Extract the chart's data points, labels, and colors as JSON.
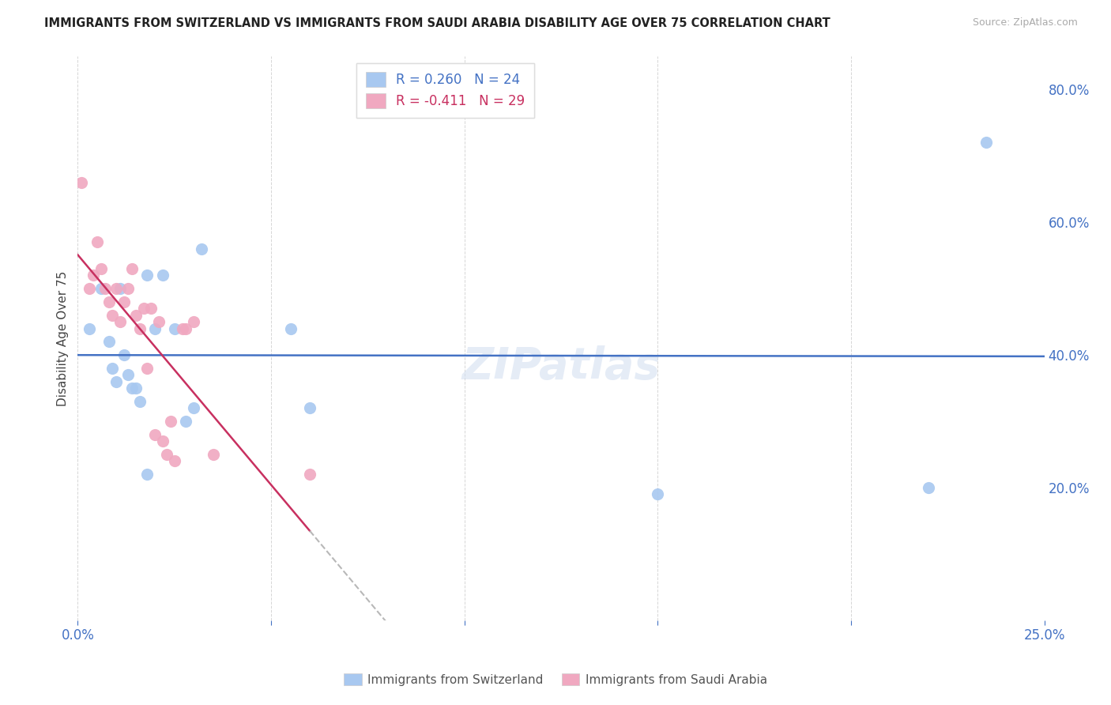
{
  "title": "IMMIGRANTS FROM SWITZERLAND VS IMMIGRANTS FROM SAUDI ARABIA DISABILITY AGE OVER 75 CORRELATION CHART",
  "source": "Source: ZipAtlas.com",
  "ylabel": "Disability Age Over 75",
  "xlim": [
    0.0,
    0.25
  ],
  "ylim": [
    0.0,
    0.85
  ],
  "xticks": [
    0.0,
    0.05,
    0.1,
    0.15,
    0.2,
    0.25
  ],
  "yticks_right": [
    0.2,
    0.4,
    0.6,
    0.8
  ],
  "ytick_right_labels": [
    "20.0%",
    "40.0%",
    "60.0%",
    "80.0%"
  ],
  "legend1_R": 0.26,
  "legend1_N": 24,
  "legend2_R": -0.411,
  "legend2_N": 29,
  "color_swiss": "#a8c8f0",
  "color_saudi": "#f0a8c0",
  "color_swiss_line": "#4472c4",
  "color_saudi_line": "#c83060",
  "color_saudi_dashed": "#b8b8b8",
  "legend_bottom_swiss": "Immigrants from Switzerland",
  "legend_bottom_saudi": "Immigrants from Saudi Arabia",
  "watermark": "ZIPatlas",
  "swiss_x": [
    0.003,
    0.006,
    0.008,
    0.009,
    0.01,
    0.011,
    0.012,
    0.013,
    0.014,
    0.015,
    0.016,
    0.018,
    0.018,
    0.02,
    0.022,
    0.025,
    0.028,
    0.03,
    0.032,
    0.055,
    0.06,
    0.15,
    0.22,
    0.235
  ],
  "swiss_y": [
    0.44,
    0.5,
    0.42,
    0.38,
    0.36,
    0.5,
    0.4,
    0.37,
    0.35,
    0.35,
    0.33,
    0.22,
    0.52,
    0.44,
    0.52,
    0.44,
    0.3,
    0.32,
    0.56,
    0.44,
    0.32,
    0.19,
    0.2,
    0.72
  ],
  "saudi_x": [
    0.001,
    0.003,
    0.004,
    0.005,
    0.006,
    0.007,
    0.008,
    0.009,
    0.01,
    0.011,
    0.012,
    0.013,
    0.014,
    0.015,
    0.016,
    0.017,
    0.018,
    0.019,
    0.02,
    0.021,
    0.022,
    0.023,
    0.024,
    0.025,
    0.027,
    0.028,
    0.03,
    0.035,
    0.06
  ],
  "saudi_y": [
    0.66,
    0.5,
    0.52,
    0.57,
    0.53,
    0.5,
    0.48,
    0.46,
    0.5,
    0.45,
    0.48,
    0.5,
    0.53,
    0.46,
    0.44,
    0.47,
    0.38,
    0.47,
    0.28,
    0.45,
    0.27,
    0.25,
    0.3,
    0.24,
    0.44,
    0.44,
    0.45,
    0.25,
    0.22
  ]
}
